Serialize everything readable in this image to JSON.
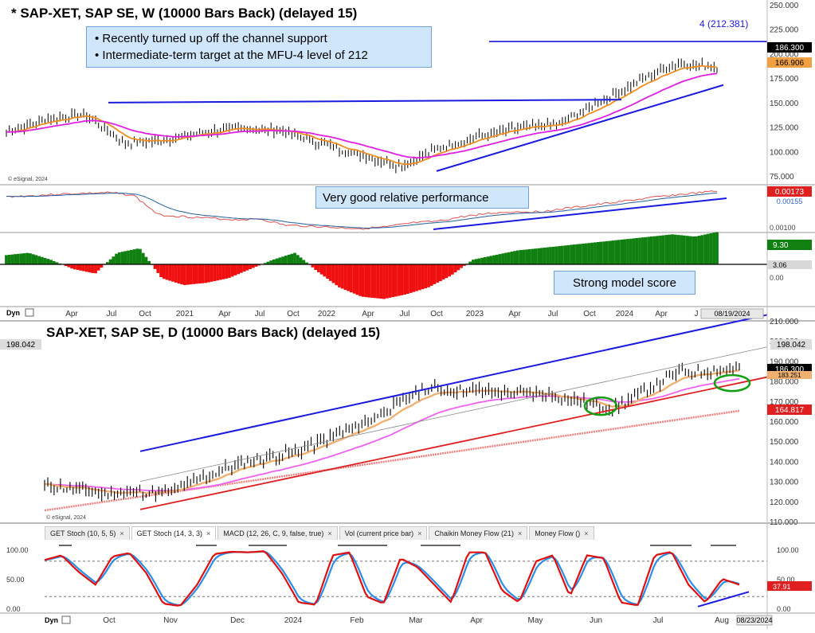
{
  "weekly": {
    "title": "* SAP-XET, SAP SE, W (10000 Bars Back) (delayed 15)",
    "annotation_lines": [
      "• Recently turned up off the channel support",
      "• Intermediate-term target at the MFU-4 level of 212"
    ],
    "target_label": "4 (212.381)",
    "price_axis_ticks": [
      "250.000",
      "225.000",
      "200.000",
      "175.000",
      "150.000",
      "125.000",
      "100.000",
      "75.000"
    ],
    "price_flag": "186.300",
    "ma_flag": "166.906",
    "copyright": "© eSignal, 2024",
    "rel_perf_label": "Very good relative performance",
    "rel_flag_top": "0.00173",
    "rel_flag_bottom": "0.00155",
    "rel_axis_tick": "0.00100",
    "model_label": "Strong model score",
    "model_flag": "9.30",
    "model_zero_flag": "3.06",
    "model_axis_tick": "0.00",
    "dyn": "Dyn",
    "date_stamp": "08/19/2024",
    "time_axis": [
      "Apr",
      "Jul",
      "Oct",
      "2021",
      "Apr",
      "Jul",
      "Oct",
      "2022",
      "Apr",
      "Jul",
      "Oct",
      "2023",
      "Apr",
      "Jul",
      "Oct",
      "2024",
      "Apr",
      "J"
    ]
  },
  "daily": {
    "title": "SAP-XET, SAP SE, D (10000 Bars Back) (delayed 15)",
    "price_axis_ticks": [
      "210.000",
      "200.000",
      "190.000",
      "180.000",
      "170.000",
      "160.000",
      "150.000",
      "140.000",
      "130.000",
      "120.000",
      "110.000"
    ],
    "flag_high": "198.042",
    "price_flag": "186.300",
    "ma_flag": "183.251",
    "ma200_flag": "164.817",
    "copyright": "© eSignal, 2024",
    "time_axis": [
      "Oct",
      "Nov",
      "Dec",
      "2024",
      "Feb",
      "Mar",
      "Apr",
      "May",
      "Jun",
      "Jul",
      "Aug"
    ],
    "dyn": "Dyn",
    "date_stamp": "08/23/2024"
  },
  "tabs": [
    "GET Stoch (10, 5, 5)",
    "GET Stoch (14, 3, 3)",
    "MACD (12, 26, C, 9, false, true)",
    "Vol (current price bar)",
    "Chaikin Money Flow (21)",
    "Money Flow ()"
  ],
  "stoch": {
    "axis_ticks": [
      "100.00",
      "50.00",
      "0.00"
    ],
    "flag": "37.91",
    "right_ticks": [
      "100.00",
      "50.00",
      "0.00"
    ]
  },
  "colors": {
    "price": "#000000",
    "orange_ma": "#f08c1e",
    "magenta_ma": "#e020e0",
    "channel_upper": "#1a1ae0",
    "channel_lower": "#e02020",
    "histogram_pos": "#108010",
    "histogram_neg": "#f01010",
    "stoch_fast": "#e01010",
    "stoch_slow": "#2a8ee8",
    "annotation_bg": "#cfe6fb"
  },
  "chart_data": [
    {
      "type": "line",
      "title": "* SAP-XET, SAP SE, W (10000 Bars Back) (delayed 15)",
      "x": [
        "2020-04",
        "2020-07",
        "2020-10",
        "2021-01",
        "2021-04",
        "2021-07",
        "2021-10",
        "2022-01",
        "2022-04",
        "2022-07",
        "2022-10",
        "2023-01",
        "2023-04",
        "2023-07",
        "2023-10",
        "2024-01",
        "2024-04",
        "2024-07",
        "2024-08"
      ],
      "series": [
        {
          "values": [
            120,
            133,
            138,
            108,
            112,
            120,
            124,
            121,
            108,
            96,
            85,
            104,
            116,
            124,
            128,
            150,
            172,
            190,
            186.3
          ]
        }
      ],
      "ylim": [
        75,
        250
      ],
      "ylabel": ""
    },
    {
      "type": "line",
      "title": "SAP-XET, SAP SE, D (10000 Bars Back) (delayed 15)",
      "x": [
        "2023-09",
        "2023-10",
        "2023-11",
        "2023-12",
        "2024-01",
        "2024-02",
        "2024-03",
        "2024-04",
        "2024-05",
        "2024-06",
        "2024-07",
        "2024-08"
      ],
      "series": [
        {
          "values": [
            128,
            124,
            125,
            138,
            145,
            158,
            176,
            175,
            173,
            166,
            184,
            186.3
          ]
        }
      ],
      "ylim": [
        110,
        210
      ]
    }
  ]
}
